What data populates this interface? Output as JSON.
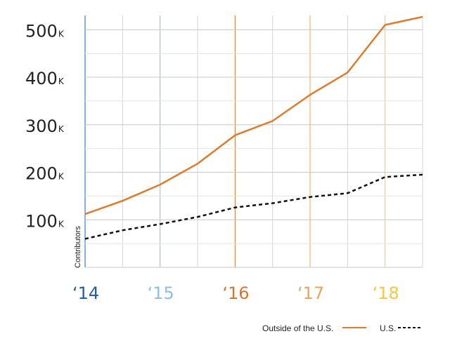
{
  "chart_data": {
    "type": "line",
    "ylabel": "Contributors",
    "ylim": [
      0,
      530
    ],
    "y_unit_suffix": "K",
    "y_ticks": [
      100,
      200,
      300,
      400,
      500
    ],
    "y_tick_labels": [
      "100",
      "200",
      "300",
      "400",
      "500"
    ],
    "x": [
      2014,
      2014.5,
      2015,
      2015.5,
      2016,
      2016.5,
      2017,
      2017.5,
      2018,
      2018.5
    ],
    "xlim": [
      2014,
      2018.5
    ],
    "x_ticks": [
      2014,
      2015,
      2016,
      2017,
      2018
    ],
    "x_tick_labels": [
      "‘14",
      "‘15",
      "‘16",
      "‘17",
      "‘18"
    ],
    "x_tick_colors": [
      "#1f5fa8",
      "#8fbde3",
      "#d9752d",
      "#eba35a",
      "#f5c842"
    ],
    "series": [
      {
        "name": "Outside of the U.S.",
        "color": "#e07b2c",
        "style": "solid",
        "values": [
          112,
          140,
          174,
          218,
          278,
          308,
          363,
          410,
          510,
          527
        ]
      },
      {
        "name": "U.S.",
        "color": "#111111",
        "style": "dashed",
        "values": [
          60,
          78,
          91,
          106,
          126,
          135,
          148,
          156,
          190,
          195
        ]
      }
    ],
    "grid": true,
    "legend": "bottom-right"
  }
}
